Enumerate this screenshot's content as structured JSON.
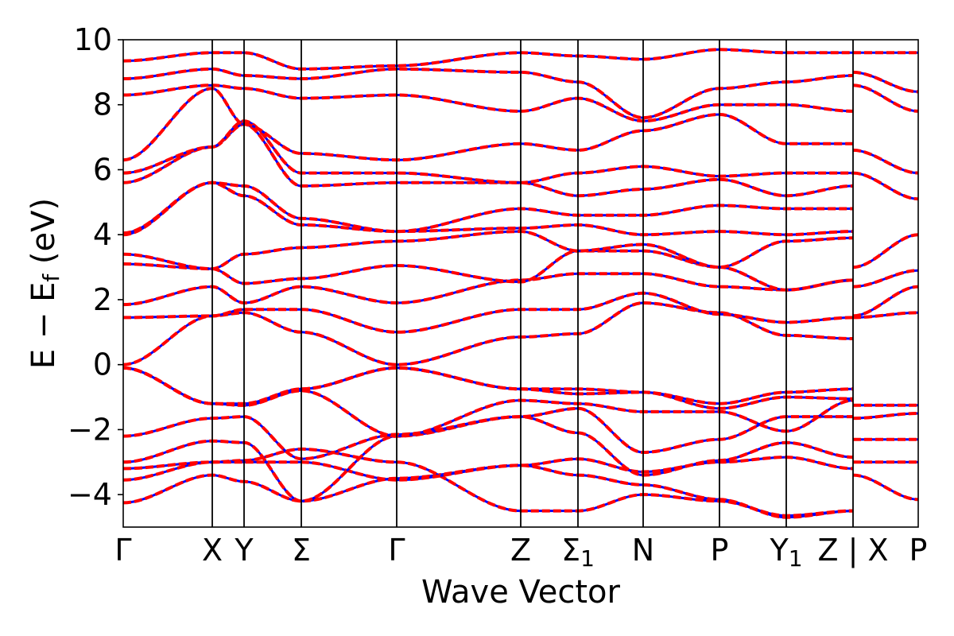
{
  "chart_data": {
    "type": "line",
    "title": "",
    "xlabel": "Wave Vector",
    "ylabel_parts": {
      "main": "E − E",
      "sub": "f",
      "unit": " (eV)"
    },
    "ylim": [
      -5,
      10
    ],
    "yticks": [
      -4,
      -2,
      0,
      2,
      4,
      6,
      8,
      10
    ],
    "ytick_labels": [
      "−4",
      "−2",
      "0",
      "2",
      "4",
      "6",
      "8",
      "10"
    ],
    "grid": false,
    "xlim": [
      0,
      25
    ],
    "kpoints": [
      {
        "x": 0,
        "label": "Γ",
        "sub": ""
      },
      {
        "x": 2.8,
        "label": "X",
        "sub": ""
      },
      {
        "x": 3.8,
        "label": "Y",
        "sub": ""
      },
      {
        "x": 5.6,
        "label": "Σ",
        "sub": ""
      },
      {
        "x": 8.6,
        "label": "Γ",
        "sub": ""
      },
      {
        "x": 12.5,
        "label": "Z",
        "sub": ""
      },
      {
        "x": 14.3,
        "label": "Σ",
        "sub": "1"
      },
      {
        "x": 16.35,
        "label": "N",
        "sub": ""
      },
      {
        "x": 18.75,
        "label": "P",
        "sub": ""
      },
      {
        "x": 20.85,
        "label": "Y",
        "sub": "1"
      },
      {
        "x": 22.95,
        "label": "Z | X",
        "sub": ""
      },
      {
        "x": 25,
        "label": "P",
        "sub": ""
      }
    ],
    "series_styles": [
      {
        "color": "#0000ff",
        "style": "solid"
      },
      {
        "color": "#ff0000",
        "style": "dashed"
      }
    ],
    "bands": [
      {
        "x": [
          0,
          2.8,
          3.8,
          5.6,
          8.6,
          12.5,
          14.3,
          16.35,
          18.75,
          20.85,
          22.95
        ],
        "y": [
          -4.25,
          -3.4,
          -3.6,
          -4.2,
          -3.5,
          -3.1,
          -3.4,
          -3.7,
          -4.15,
          -4.7,
          -4.5
        ]
      },
      {
        "x": [
          0,
          2.8,
          3.8,
          5.6,
          8.6,
          12.5,
          14.3,
          16.35,
          18.75,
          20.85,
          22.95
        ],
        "y": [
          -3.55,
          -3.0,
          -2.95,
          -2.6,
          -3.0,
          -4.5,
          -4.5,
          -4.0,
          -4.2,
          -4.65,
          -4.5
        ]
      },
      {
        "x": [
          0,
          2.8,
          3.8,
          5.6,
          8.6,
          12.5,
          14.3,
          16.35,
          18.75,
          20.85,
          22.95
        ],
        "y": [
          -3.2,
          -3.0,
          -3.0,
          -3.0,
          -3.55,
          -3.1,
          -2.9,
          -3.3,
          -3.0,
          -2.85,
          -3.2
        ]
      },
      {
        "x": [
          0,
          2.8,
          3.8,
          5.6,
          8.6,
          12.5,
          14.3,
          16.35,
          18.75,
          20.85,
          22.95
        ],
        "y": [
          -3.0,
          -2.35,
          -2.4,
          -4.2,
          -2.2,
          -1.6,
          -2.1,
          -3.4,
          -2.95,
          -2.4,
          -2.85
        ]
      },
      {
        "x": [
          0,
          2.8,
          3.8,
          5.6,
          8.6,
          12.5,
          14.3,
          16.35,
          18.75,
          20.85,
          22.95
        ],
        "y": [
          -2.2,
          -1.65,
          -1.6,
          -2.9,
          -2.15,
          -1.6,
          -1.35,
          -2.7,
          -2.3,
          -1.6,
          -1.6
        ]
      },
      {
        "x": [
          0,
          2.8,
          3.8,
          5.6,
          8.6,
          12.5,
          14.3,
          16.35,
          18.75,
          20.85,
          22.95
        ],
        "y": [
          -0.1,
          -1.2,
          -1.25,
          -0.8,
          -2.2,
          -1.1,
          -1.2,
          -1.45,
          -1.45,
          -2.05,
          -1.1
        ]
      },
      {
        "x": [
          0,
          2.8,
          3.8,
          5.6,
          8.6,
          12.5,
          14.3,
          16.35,
          18.75,
          20.85,
          22.95
        ],
        "y": [
          -0.1,
          -1.2,
          -1.25,
          -0.75,
          -0.1,
          -0.75,
          -0.75,
          -0.85,
          -1.35,
          -1.0,
          -1.05
        ]
      },
      {
        "x": [
          0,
          2.8,
          3.8,
          5.6,
          8.6,
          12.5,
          14.3,
          16.35,
          18.75,
          20.85,
          22.95
        ],
        "y": [
          -0.1,
          -1.2,
          -1.2,
          -0.75,
          -0.1,
          -0.75,
          -0.9,
          -0.85,
          -1.2,
          -0.85,
          -0.75
        ]
      },
      {
        "x": [
          0,
          2.8,
          3.8,
          5.6,
          8.6,
          12.5,
          14.3,
          16.35,
          18.75,
          20.85,
          22.95
        ],
        "y": [
          0.0,
          1.5,
          1.6,
          1.0,
          0.0,
          0.85,
          0.95,
          1.9,
          1.6,
          0.9,
          0.8
        ]
      },
      {
        "x": [
          0,
          2.8,
          3.8,
          5.6,
          8.6,
          12.5,
          14.3,
          16.35,
          18.75,
          20.85,
          22.95
        ],
        "y": [
          1.45,
          1.5,
          1.7,
          1.7,
          1.0,
          1.7,
          1.7,
          2.2,
          1.55,
          1.3,
          1.45
        ]
      },
      {
        "x": [
          0,
          2.8,
          3.8,
          5.6,
          8.6,
          12.5,
          14.3,
          16.35,
          18.75,
          20.85,
          22.95
        ],
        "y": [
          1.85,
          2.4,
          1.9,
          2.4,
          1.9,
          2.6,
          2.8,
          2.8,
          2.4,
          2.3,
          2.6
        ]
      },
      {
        "x": [
          0,
          2.8,
          3.8,
          5.6,
          8.6,
          12.5,
          14.3,
          16.35,
          18.75,
          20.85,
          22.95
        ],
        "y": [
          3.1,
          2.95,
          2.5,
          2.65,
          3.05,
          2.55,
          3.5,
          3.5,
          3.0,
          2.3,
          2.6
        ]
      },
      {
        "x": [
          0,
          2.8,
          3.8,
          5.6,
          8.6,
          12.5,
          14.3,
          16.35,
          18.75,
          20.85,
          22.95
        ],
        "y": [
          3.4,
          2.95,
          3.4,
          3.6,
          3.8,
          4.1,
          3.5,
          3.7,
          3.0,
          3.8,
          3.9
        ]
      },
      {
        "x": [
          0,
          2.8,
          3.8,
          5.6,
          8.6,
          12.5,
          14.3,
          16.35,
          18.75,
          20.85,
          22.95
        ],
        "y": [
          4.0,
          5.6,
          5.2,
          4.3,
          4.1,
          4.2,
          4.3,
          4.0,
          4.1,
          4.0,
          4.1
        ]
      },
      {
        "x": [
          0,
          2.8,
          3.8,
          5.6,
          8.6,
          12.5,
          14.3,
          16.35,
          18.75,
          20.85,
          22.95
        ],
        "y": [
          4.05,
          5.6,
          5.5,
          4.5,
          4.1,
          4.8,
          4.6,
          4.6,
          4.9,
          4.8,
          4.8
        ]
      },
      {
        "x": [
          0,
          2.8,
          3.8,
          5.6,
          8.6,
          12.5,
          14.3,
          16.35,
          18.75,
          20.85,
          22.95
        ],
        "y": [
          5.6,
          6.7,
          7.4,
          5.5,
          5.6,
          5.6,
          5.2,
          5.4,
          5.7,
          5.2,
          5.5
        ]
      },
      {
        "x": [
          0,
          2.8,
          3.8,
          5.6,
          8.6,
          12.5,
          14.3,
          16.35,
          18.75,
          20.85,
          22.95
        ],
        "y": [
          5.9,
          6.7,
          7.5,
          5.9,
          5.9,
          5.6,
          5.9,
          6.1,
          5.8,
          5.9,
          5.9
        ]
      },
      {
        "x": [
          0,
          2.8,
          3.8,
          5.6,
          8.6,
          12.5,
          14.3,
          16.35,
          18.75,
          20.85,
          22.95
        ],
        "y": [
          6.3,
          8.5,
          7.4,
          6.5,
          6.3,
          6.8,
          6.6,
          7.2,
          7.7,
          6.8,
          6.8
        ]
      },
      {
        "x": [
          0,
          2.8,
          3.8,
          5.6,
          8.6,
          12.5,
          14.3,
          16.35,
          18.75,
          20.85,
          22.95
        ],
        "y": [
          8.3,
          8.6,
          8.5,
          8.2,
          8.3,
          7.8,
          8.2,
          7.5,
          8.0,
          8.0,
          7.8
        ]
      },
      {
        "x": [
          0,
          2.8,
          3.8,
          5.6,
          8.6,
          12.5,
          14.3,
          16.35,
          18.75,
          20.85,
          22.95
        ],
        "y": [
          8.8,
          9.1,
          8.9,
          8.8,
          9.1,
          9.0,
          8.7,
          7.6,
          8.5,
          8.7,
          8.9
        ]
      },
      {
        "x": [
          0,
          2.8,
          3.8,
          5.6,
          8.6,
          12.5,
          14.3,
          16.35,
          18.75,
          20.85,
          22.95
        ],
        "y": [
          9.35,
          9.6,
          9.6,
          9.1,
          9.2,
          9.6,
          9.5,
          9.4,
          9.7,
          9.6,
          9.6
        ]
      },
      {
        "x": [
          22.95,
          25
        ],
        "y": [
          -3.4,
          -4.15
        ]
      },
      {
        "x": [
          22.95,
          25
        ],
        "y": [
          -3.0,
          -3.0
        ]
      },
      {
        "x": [
          22.95,
          25
        ],
        "y": [
          -2.3,
          -2.3
        ]
      },
      {
        "x": [
          22.95,
          25
        ],
        "y": [
          -1.65,
          -1.5
        ]
      },
      {
        "x": [
          22.95,
          25
        ],
        "y": [
          -1.25,
          -1.25
        ]
      },
      {
        "x": [
          22.95,
          25
        ],
        "y": [
          1.45,
          1.6
        ]
      },
      {
        "x": [
          22.95,
          25
        ],
        "y": [
          1.5,
          2.4
        ]
      },
      {
        "x": [
          22.95,
          25
        ],
        "y": [
          2.4,
          2.9
        ]
      },
      {
        "x": [
          22.95,
          25
        ],
        "y": [
          3.0,
          4.0
        ]
      },
      {
        "x": [
          22.95,
          25
        ],
        "y": [
          5.9,
          5.1
        ]
      },
      {
        "x": [
          22.95,
          25
        ],
        "y": [
          6.6,
          5.9
        ]
      },
      {
        "x": [
          22.95,
          25
        ],
        "y": [
          8.6,
          7.8
        ]
      },
      {
        "x": [
          22.95,
          25
        ],
        "y": [
          9.0,
          8.4
        ]
      },
      {
        "x": [
          22.95,
          25
        ],
        "y": [
          9.6,
          9.6
        ]
      }
    ]
  }
}
